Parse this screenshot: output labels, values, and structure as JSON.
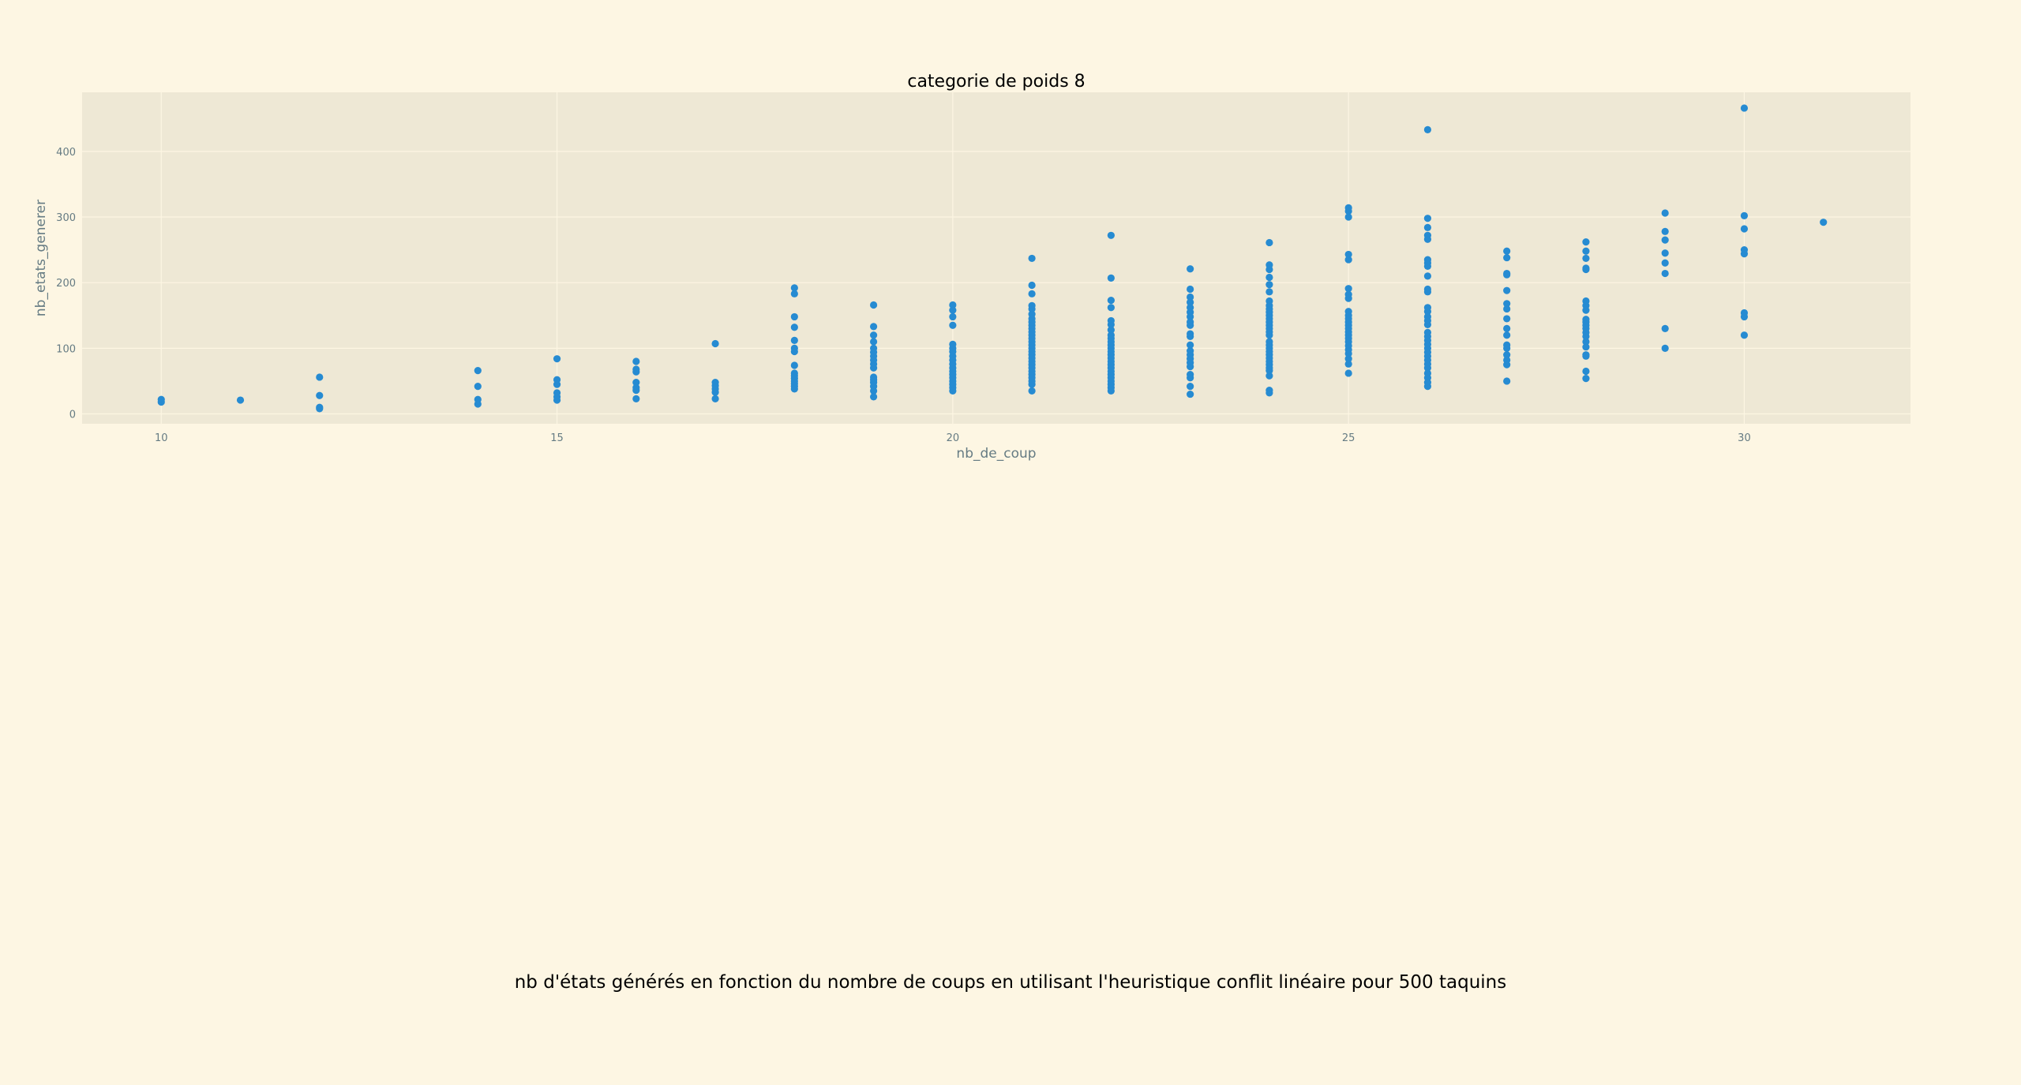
{
  "figure_title": "nb d'états générés en fonction du nombre de coups en utilisant l'heuristique conflit linéaire pour 500 taquins",
  "colors": {
    "background": "#fdf6e3",
    "plot_background": "#eee8d5",
    "grid": "#fdf6e3",
    "point": "#268bd2",
    "text": "#657b83"
  },
  "chart_data": {
    "type": "scatter",
    "title": "categorie de poids 8",
    "xlabel": "nb_de_coup",
    "ylabel": "nb_etats_generer",
    "xlim": [
      9,
      32.1
    ],
    "ylim": [
      -15,
      490
    ],
    "xticks": [
      10,
      15,
      20,
      25,
      30
    ],
    "yticks": [
      0,
      100,
      200,
      300,
      400
    ],
    "grid": true,
    "legend": "none",
    "series": [
      {
        "points": [
          [
            10,
            18
          ],
          [
            10,
            22
          ],
          [
            11,
            21
          ],
          [
            12,
            8
          ],
          [
            12,
            10
          ],
          [
            12,
            28
          ],
          [
            12,
            56
          ],
          [
            14,
            15
          ],
          [
            14,
            22
          ],
          [
            14,
            42
          ],
          [
            14,
            66
          ],
          [
            15,
            21
          ],
          [
            15,
            26
          ],
          [
            15,
            32
          ],
          [
            15,
            45
          ],
          [
            15,
            52
          ],
          [
            15,
            84
          ],
          [
            16,
            23
          ],
          [
            16,
            36
          ],
          [
            16,
            40
          ],
          [
            16,
            48
          ],
          [
            16,
            64
          ],
          [
            16,
            68
          ],
          [
            16,
            80
          ],
          [
            17,
            23
          ],
          [
            17,
            33
          ],
          [
            17,
            38
          ],
          [
            17,
            43
          ],
          [
            17,
            48
          ],
          [
            17,
            107
          ],
          [
            18,
            38
          ],
          [
            18,
            42
          ],
          [
            18,
            46
          ],
          [
            18,
            50
          ],
          [
            18,
            54
          ],
          [
            18,
            58
          ],
          [
            18,
            62
          ],
          [
            18,
            74
          ],
          [
            18,
            95
          ],
          [
            18,
            100
          ],
          [
            18,
            112
          ],
          [
            18,
            132
          ],
          [
            18,
            148
          ],
          [
            18,
            183
          ],
          [
            18,
            192
          ],
          [
            19,
            26
          ],
          [
            19,
            35
          ],
          [
            19,
            42
          ],
          [
            19,
            48
          ],
          [
            19,
            52
          ],
          [
            19,
            56
          ],
          [
            19,
            70
          ],
          [
            19,
            76
          ],
          [
            19,
            82
          ],
          [
            19,
            88
          ],
          [
            19,
            94
          ],
          [
            19,
            100
          ],
          [
            19,
            110
          ],
          [
            19,
            120
          ],
          [
            19,
            133
          ],
          [
            19,
            166
          ],
          [
            20,
            35
          ],
          [
            20,
            40
          ],
          [
            20,
            45
          ],
          [
            20,
            50
          ],
          [
            20,
            55
          ],
          [
            20,
            60
          ],
          [
            20,
            65
          ],
          [
            20,
            70
          ],
          [
            20,
            76
          ],
          [
            20,
            82
          ],
          [
            20,
            88
          ],
          [
            20,
            95
          ],
          [
            20,
            100
          ],
          [
            20,
            106
          ],
          [
            20,
            135
          ],
          [
            20,
            148
          ],
          [
            20,
            158
          ],
          [
            20,
            166
          ],
          [
            21,
            35
          ],
          [
            21,
            45
          ],
          [
            21,
            50
          ],
          [
            21,
            55
          ],
          [
            21,
            60
          ],
          [
            21,
            65
          ],
          [
            21,
            70
          ],
          [
            21,
            75
          ],
          [
            21,
            80
          ],
          [
            21,
            85
          ],
          [
            21,
            90
          ],
          [
            21,
            95
          ],
          [
            21,
            100
          ],
          [
            21,
            105
          ],
          [
            21,
            110
          ],
          [
            21,
            115
          ],
          [
            21,
            120
          ],
          [
            21,
            125
          ],
          [
            21,
            130
          ],
          [
            21,
            135
          ],
          [
            21,
            140
          ],
          [
            21,
            145
          ],
          [
            21,
            152
          ],
          [
            21,
            160
          ],
          [
            21,
            165
          ],
          [
            21,
            183
          ],
          [
            21,
            196
          ],
          [
            21,
            237
          ],
          [
            22,
            35
          ],
          [
            22,
            40
          ],
          [
            22,
            45
          ],
          [
            22,
            50
          ],
          [
            22,
            55
          ],
          [
            22,
            60
          ],
          [
            22,
            65
          ],
          [
            22,
            70
          ],
          [
            22,
            75
          ],
          [
            22,
            80
          ],
          [
            22,
            85
          ],
          [
            22,
            90
          ],
          [
            22,
            95
          ],
          [
            22,
            100
          ],
          [
            22,
            105
          ],
          [
            22,
            110
          ],
          [
            22,
            115
          ],
          [
            22,
            120
          ],
          [
            22,
            128
          ],
          [
            22,
            136
          ],
          [
            22,
            142
          ],
          [
            22,
            162
          ],
          [
            22,
            173
          ],
          [
            22,
            207
          ],
          [
            22,
            272
          ],
          [
            23,
            30
          ],
          [
            23,
            42
          ],
          [
            23,
            55
          ],
          [
            23,
            60
          ],
          [
            23,
            72
          ],
          [
            23,
            78
          ],
          [
            23,
            84
          ],
          [
            23,
            90
          ],
          [
            23,
            96
          ],
          [
            23,
            105
          ],
          [
            23,
            118
          ],
          [
            23,
            122
          ],
          [
            23,
            135
          ],
          [
            23,
            140
          ],
          [
            23,
            148
          ],
          [
            23,
            155
          ],
          [
            23,
            162
          ],
          [
            23,
            170
          ],
          [
            23,
            178
          ],
          [
            23,
            190
          ],
          [
            23,
            221
          ],
          [
            24,
            32
          ],
          [
            24,
            36
          ],
          [
            24,
            58
          ],
          [
            24,
            66
          ],
          [
            24,
            70
          ],
          [
            24,
            75
          ],
          [
            24,
            80
          ],
          [
            24,
            85
          ],
          [
            24,
            90
          ],
          [
            24,
            95
          ],
          [
            24,
            100
          ],
          [
            24,
            105
          ],
          [
            24,
            110
          ],
          [
            24,
            120
          ],
          [
            24,
            125
          ],
          [
            24,
            130
          ],
          [
            24,
            135
          ],
          [
            24,
            140
          ],
          [
            24,
            145
          ],
          [
            24,
            150
          ],
          [
            24,
            155
          ],
          [
            24,
            160
          ],
          [
            24,
            165
          ],
          [
            24,
            172
          ],
          [
            24,
            186
          ],
          [
            24,
            197
          ],
          [
            24,
            208
          ],
          [
            24,
            220
          ],
          [
            24,
            227
          ],
          [
            24,
            261
          ],
          [
            25,
            62
          ],
          [
            25,
            76
          ],
          [
            25,
            84
          ],
          [
            25,
            92
          ],
          [
            25,
            98
          ],
          [
            25,
            104
          ],
          [
            25,
            110
          ],
          [
            25,
            115
          ],
          [
            25,
            120
          ],
          [
            25,
            125
          ],
          [
            25,
            130
          ],
          [
            25,
            135
          ],
          [
            25,
            140
          ],
          [
            25,
            145
          ],
          [
            25,
            150
          ],
          [
            25,
            156
          ],
          [
            25,
            176
          ],
          [
            25,
            182
          ],
          [
            25,
            191
          ],
          [
            25,
            235
          ],
          [
            25,
            243
          ],
          [
            25,
            300
          ],
          [
            25,
            309
          ],
          [
            25,
            314
          ],
          [
            26,
            42
          ],
          [
            26,
            48
          ],
          [
            26,
            55
          ],
          [
            26,
            62
          ],
          [
            26,
            70
          ],
          [
            26,
            76
          ],
          [
            26,
            82
          ],
          [
            26,
            88
          ],
          [
            26,
            94
          ],
          [
            26,
            100
          ],
          [
            26,
            106
          ],
          [
            26,
            112
          ],
          [
            26,
            118
          ],
          [
            26,
            124
          ],
          [
            26,
            136
          ],
          [
            26,
            142
          ],
          [
            26,
            148
          ],
          [
            26,
            156
          ],
          [
            26,
            162
          ],
          [
            26,
            186
          ],
          [
            26,
            190
          ],
          [
            26,
            210
          ],
          [
            26,
            225
          ],
          [
            26,
            230
          ],
          [
            26,
            235
          ],
          [
            26,
            266
          ],
          [
            26,
            272
          ],
          [
            26,
            284
          ],
          [
            26,
            298
          ],
          [
            26,
            433
          ],
          [
            27,
            50
          ],
          [
            27,
            75
          ],
          [
            27,
            82
          ],
          [
            27,
            90
          ],
          [
            27,
            100
          ],
          [
            27,
            105
          ],
          [
            27,
            120
          ],
          [
            27,
            130
          ],
          [
            27,
            145
          ],
          [
            27,
            160
          ],
          [
            27,
            168
          ],
          [
            27,
            188
          ],
          [
            27,
            212
          ],
          [
            27,
            214
          ],
          [
            27,
            238
          ],
          [
            27,
            248
          ],
          [
            28,
            54
          ],
          [
            28,
            65
          ],
          [
            28,
            88
          ],
          [
            28,
            90
          ],
          [
            28,
            102
          ],
          [
            28,
            110
          ],
          [
            28,
            118
          ],
          [
            28,
            124
          ],
          [
            28,
            130
          ],
          [
            28,
            135
          ],
          [
            28,
            140
          ],
          [
            28,
            144
          ],
          [
            28,
            158
          ],
          [
            28,
            165
          ],
          [
            28,
            172
          ],
          [
            28,
            220
          ],
          [
            28,
            222
          ],
          [
            28,
            237
          ],
          [
            28,
            248
          ],
          [
            28,
            262
          ],
          [
            29,
            100
          ],
          [
            29,
            130
          ],
          [
            29,
            214
          ],
          [
            29,
            230
          ],
          [
            29,
            245
          ],
          [
            29,
            265
          ],
          [
            29,
            278
          ],
          [
            29,
            306
          ],
          [
            30,
            120
          ],
          [
            30,
            148
          ],
          [
            30,
            154
          ],
          [
            30,
            244
          ],
          [
            30,
            250
          ],
          [
            30,
            282
          ],
          [
            30,
            302
          ],
          [
            30,
            466
          ],
          [
            31,
            292
          ]
        ]
      }
    ]
  }
}
